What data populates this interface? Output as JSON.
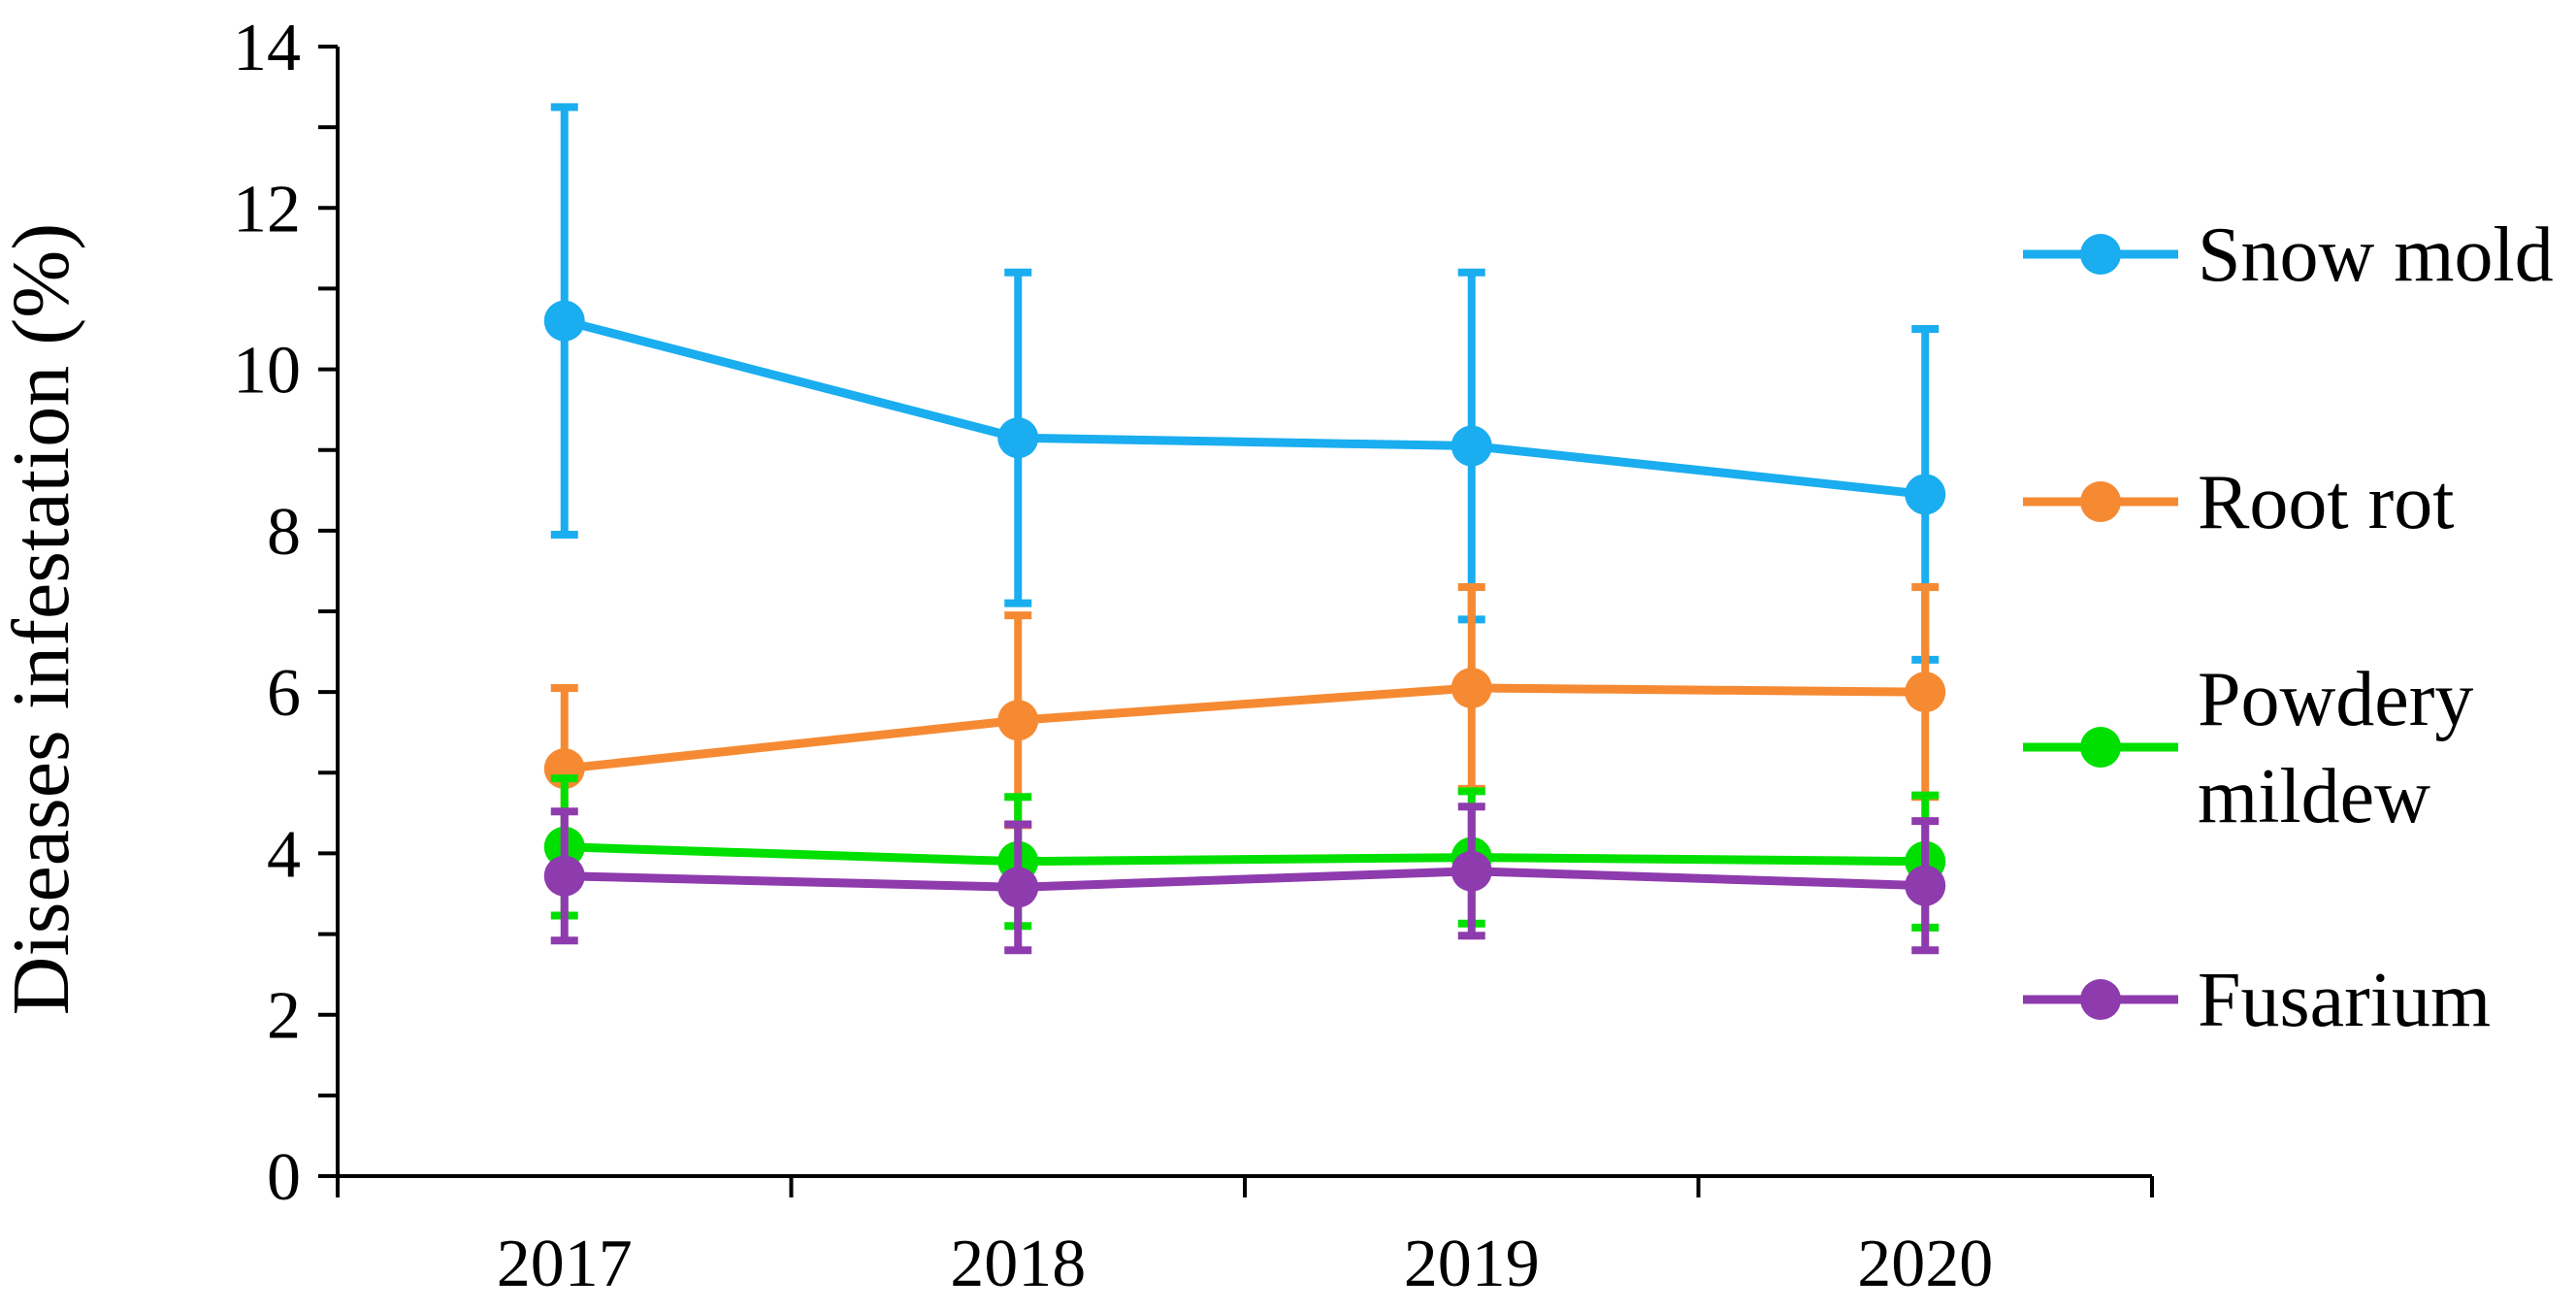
{
  "chart_data": {
    "type": "line",
    "title": "",
    "xlabel": "",
    "ylabel": "Diseases infestation (%)",
    "categories": [
      "2017",
      "2018",
      "2019",
      "2020"
    ],
    "ylim": [
      0,
      14
    ],
    "yticks": [
      "0",
      "2",
      "4",
      "6",
      "8",
      "10",
      "12",
      "14"
    ],
    "grid": false,
    "legend_position": "right",
    "series": [
      {
        "name": "Snow mold",
        "color": "#1AADEF",
        "values": [
          10.6,
          9.15,
          9.05,
          8.45
        ],
        "errors": [
          2.65,
          2.05,
          2.15,
          2.05
        ]
      },
      {
        "name": "Root rot",
        "color": "#F68A33",
        "values": [
          5.05,
          5.65,
          6.05,
          6.0
        ],
        "errors": [
          1.0,
          1.3,
          1.25,
          1.3
        ]
      },
      {
        "name": "Powdery mildew",
        "color": "#00E000",
        "values": [
          4.08,
          3.9,
          3.95,
          3.9
        ],
        "errors": [
          0.85,
          0.8,
          0.82,
          0.82
        ]
      },
      {
        "name": "Fusarium",
        "color": "#8E3BAE",
        "values": [
          3.72,
          3.58,
          3.78,
          3.6
        ],
        "errors": [
          0.8,
          0.78,
          0.8,
          0.8
        ]
      }
    ],
    "legend_labels": [
      {
        "series": "Snow mold",
        "lines": [
          "Snow mold"
        ]
      },
      {
        "series": "Root rot",
        "lines": [
          "Root rot"
        ]
      },
      {
        "series": "Powdery mildew",
        "lines": [
          "Powdery",
          "mildew"
        ]
      },
      {
        "series": "Fusarium",
        "lines": [
          "Fusarium"
        ]
      }
    ]
  }
}
